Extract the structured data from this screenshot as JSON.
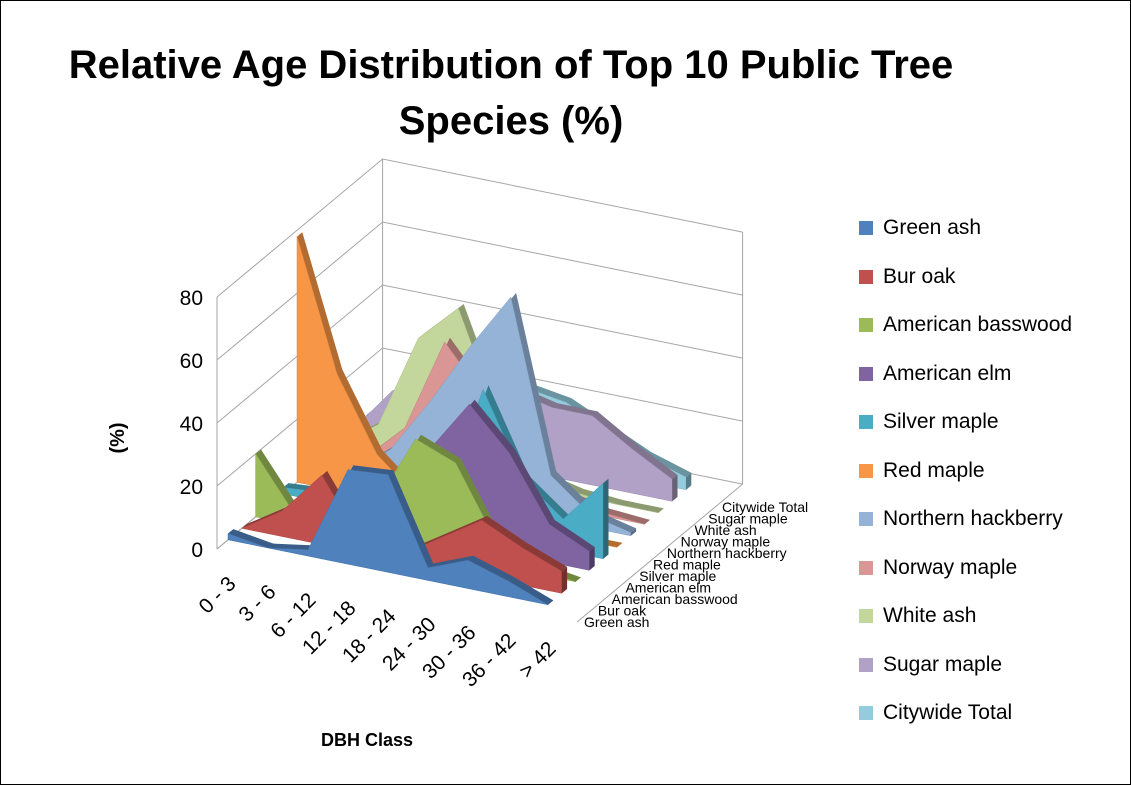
{
  "chart_data": {
    "type": "area",
    "title": "Relative Age Distribution of Top 10 Public Tree Species (%)",
    "xlabel": "DBH Class",
    "ylabel": "(%)",
    "ylim": [
      0,
      80
    ],
    "yticks": [
      "0",
      "20",
      "40",
      "60",
      "80"
    ],
    "categories": [
      "0 - 3",
      "3 - 6",
      "6 - 12",
      "12 - 18",
      "18 - 24",
      "24 - 30",
      "30 - 36",
      "36 - 42",
      "> 42"
    ],
    "legend_position": "right",
    "grid": true,
    "series": [
      {
        "name": "Green ash",
        "color": "#4F81BD",
        "values": [
          2,
          0,
          2,
          30,
          31,
          4,
          9,
          5,
          0
        ]
      },
      {
        "name": "Bur oak",
        "color": "#C0504D",
        "values": [
          0,
          8,
          22,
          3,
          2,
          10,
          18,
          12,
          7
        ]
      },
      {
        "name": "American basswood",
        "color": "#9BBB59",
        "values": [
          20,
          3,
          5,
          12,
          35,
          30,
          8,
          2,
          0
        ]
      },
      {
        "name": "American elm",
        "color": "#8064A2",
        "values": [
          0,
          1,
          2,
          4,
          28,
          45,
          32,
          12,
          6
        ]
      },
      {
        "name": "Silver maple",
        "color": "#4BACC6",
        "values": [
          2,
          3,
          3,
          7,
          10,
          46,
          20,
          10,
          24
        ]
      },
      {
        "name": "Red maple",
        "color": "#F79646",
        "values": [
          78,
          37,
          14,
          3,
          2,
          1,
          0,
          0,
          0
        ]
      },
      {
        "name": "Northern hackberry",
        "color": "#95B3D7",
        "values": [
          1,
          2,
          12,
          30,
          50,
          68,
          14,
          4,
          1
        ]
      },
      {
        "name": "Norway maple",
        "color": "#D99694",
        "values": [
          1,
          3,
          15,
          45,
          30,
          10,
          4,
          1,
          0
        ]
      },
      {
        "name": "White ash",
        "color": "#C3D69B",
        "values": [
          1,
          10,
          40,
          52,
          20,
          4,
          1,
          0,
          0
        ]
      },
      {
        "name": "Sugar maple",
        "color": "#B2A1C7",
        "values": [
          2,
          17,
          25,
          30,
          25,
          22,
          22,
          14,
          7
        ]
      },
      {
        "name": "Citywide Total",
        "color": "#93CDDD",
        "values": [
          3,
          6,
          12,
          18,
          22,
          20,
          14,
          8,
          4
        ]
      }
    ]
  }
}
